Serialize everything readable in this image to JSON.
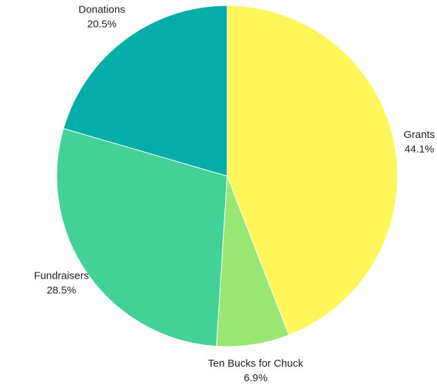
{
  "chart_data": {
    "type": "pie",
    "title": "",
    "start_angle_deg": 0,
    "direction": "clockwise",
    "slices": [
      {
        "label": "Grants",
        "value": 44.1,
        "display_value": "44.1%",
        "color": "#FFF659"
      },
      {
        "label": "Ten Bucks for Chuck",
        "value": 6.9,
        "display_value": "6.9%",
        "color": "#98E674"
      },
      {
        "label": "Fundraisers",
        "value": 28.5,
        "display_value": "28.5%",
        "color": "#42D196"
      },
      {
        "label": "Donations",
        "value": 20.5,
        "display_value": "20.5%",
        "color": "#04ADA8"
      }
    ],
    "legend": "none",
    "labels": "outside"
  }
}
